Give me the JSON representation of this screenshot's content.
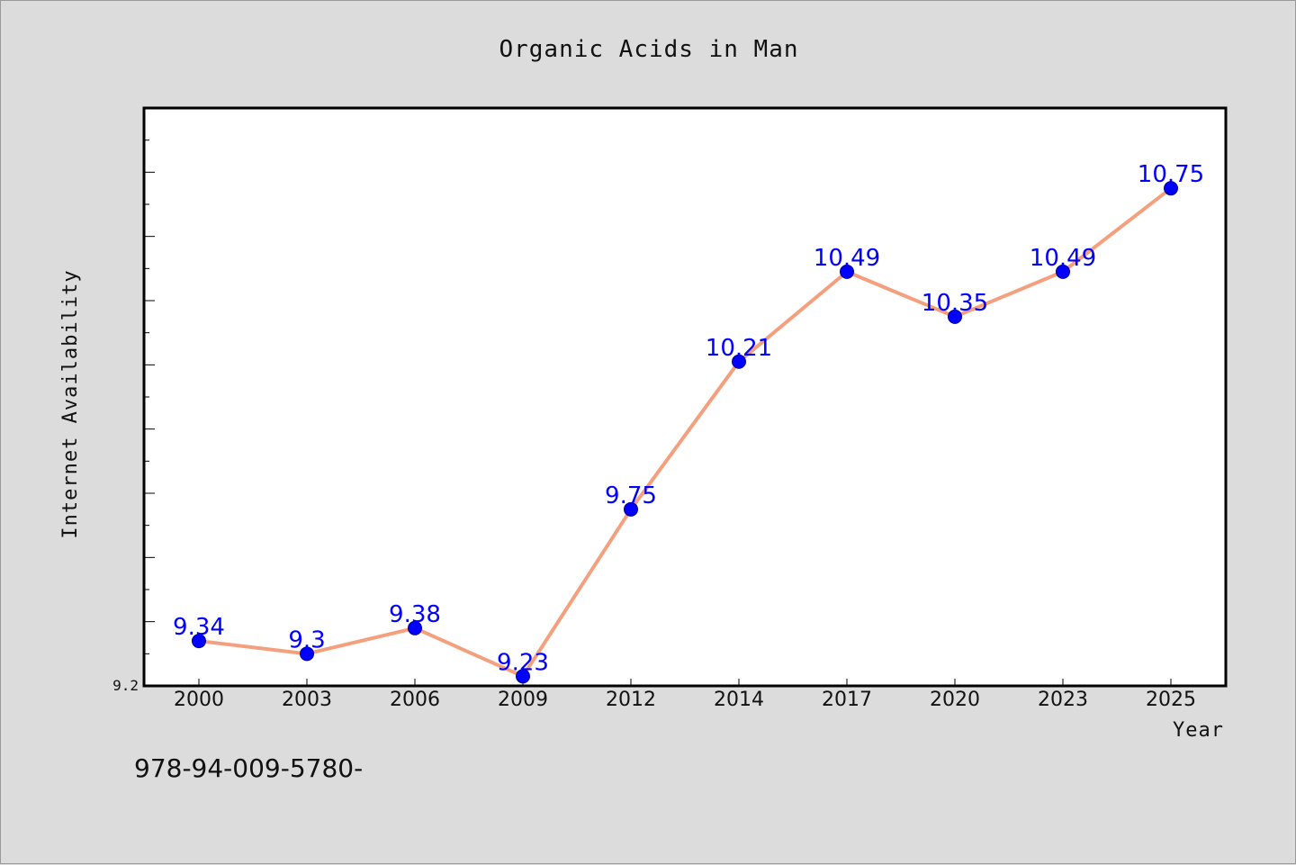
{
  "chart_data": {
    "type": "line",
    "title": "Organic Acids in Man",
    "xlabel": "Year",
    "ylabel": "Internet Availability",
    "categories": [
      "2000",
      "2003",
      "2006",
      "2009",
      "2012",
      "2014",
      "2017",
      "2020",
      "2023",
      "2025"
    ],
    "series": [
      {
        "values": [
          9.34,
          9.3,
          9.38,
          9.23,
          9.75,
          10.21,
          10.49,
          10.35,
          10.49,
          10.75
        ],
        "line_color": "#f4a07e",
        "marker_color": "#0000ff"
      }
    ],
    "data_labels": [
      "9.34",
      "9.3",
      "9.38",
      "9.23",
      "9.75",
      "10.21",
      "10.49",
      "10.35",
      "10.49",
      "10.75"
    ],
    "ylim": [
      9.2,
      11.0
    ],
    "y_tick_label": "9.2",
    "grid": false,
    "legend": "none"
  },
  "footnote": "978-94-009-5780-"
}
